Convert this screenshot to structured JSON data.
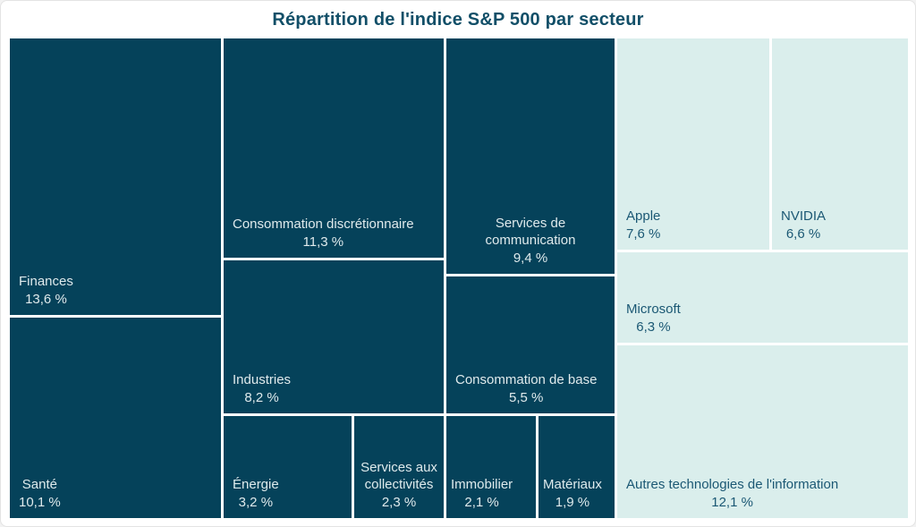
{
  "title": "Répartition de l'indice S&P 500 par secteur",
  "colors": {
    "background": "#ffffff",
    "dark_tile": "#05425a",
    "light_tile": "#daeeec",
    "text_on_dark": "#dfeaec",
    "text_on_light": "#1b5874",
    "title": "#124f68"
  },
  "chart_data": {
    "type": "treemap",
    "title": "Répartition de l'indice S&P 500 par secteur",
    "unit": "%",
    "legend": "none",
    "groups": [
      "secteurs",
      "technologies de l'information"
    ],
    "tiles": [
      {
        "label": "Finances",
        "value": 13.6,
        "display": "13,6 %",
        "group": "secteurs",
        "color": "#05425a"
      },
      {
        "label": "Santé",
        "value": 10.1,
        "display": "10,1 %",
        "group": "secteurs",
        "color": "#05425a"
      },
      {
        "label": "Consommation discrétionnaire",
        "value": 11.3,
        "display": "11,3 %",
        "group": "secteurs",
        "color": "#05425a"
      },
      {
        "label": "Industries",
        "value": 8.2,
        "display": "8,2 %",
        "group": "secteurs",
        "color": "#05425a"
      },
      {
        "label": "Énergie",
        "value": 3.2,
        "display": "3,2 %",
        "group": "secteurs",
        "color": "#05425a"
      },
      {
        "label": "Services aux collectivités",
        "value": 2.3,
        "display": "2,3 %",
        "group": "secteurs",
        "color": "#05425a"
      },
      {
        "label": "Services de communication",
        "value": 9.4,
        "display": "9,4 %",
        "group": "secteurs",
        "color": "#05425a"
      },
      {
        "label": "Consommation de base",
        "value": 5.5,
        "display": "5,5 %",
        "group": "secteurs",
        "color": "#05425a"
      },
      {
        "label": "Immobilier",
        "value": 2.1,
        "display": "2,1 %",
        "group": "secteurs",
        "color": "#05425a"
      },
      {
        "label": "Matériaux",
        "value": 1.9,
        "display": "1,9 %",
        "group": "secteurs",
        "color": "#05425a"
      },
      {
        "label": "Apple",
        "value": 7.6,
        "display": "7,6 %",
        "group": "technologies de l'information",
        "color": "#daeeec"
      },
      {
        "label": "NVIDIA",
        "value": 6.6,
        "display": "6,6 %",
        "group": "technologies de l'information",
        "color": "#daeeec"
      },
      {
        "label": "Microsoft",
        "value": 6.3,
        "display": "6,3 %",
        "group": "technologies de l'information",
        "color": "#daeeec"
      },
      {
        "label": "Autres technologies de l'information",
        "value": 12.1,
        "display": "12,1 %",
        "group": "technologies de l'information",
        "color": "#daeeec"
      }
    ]
  }
}
